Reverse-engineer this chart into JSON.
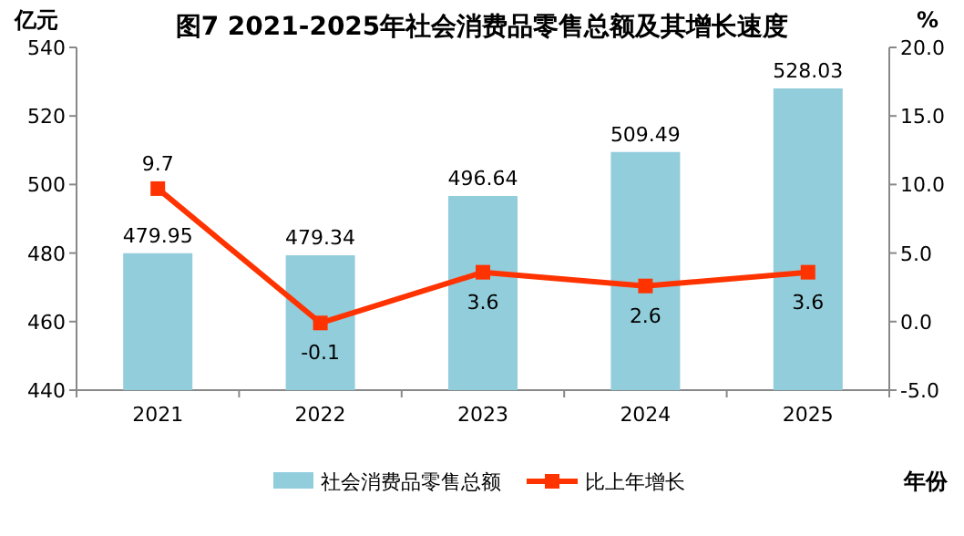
{
  "chart_data": {
    "type": "bar",
    "title": "图7  2021-2025年社会消费品零售总额及其增长速度",
    "xlabel": "年份",
    "ylabel": "亿元",
    "y2label": "%",
    "categories": [
      "2021",
      "2022",
      "2023",
      "2024",
      "2025"
    ],
    "series": [
      {
        "name": "社会消费品零售总额",
        "color": "#92cddc",
        "values": [
          479.95,
          479.34,
          496.64,
          509.49,
          528.03
        ]
      },
      {
        "name": "比上年增长",
        "type": "line",
        "axis": "y2",
        "color": "#ff3300",
        "values": [
          9.7,
          -0.1,
          3.6,
          2.6,
          3.6
        ]
      }
    ],
    "ylim": [
      440,
      540
    ],
    "yticks": [
      440,
      460,
      480,
      500,
      520,
      540
    ],
    "y2lim": [
      -5,
      20
    ],
    "y2ticks": [
      {
        "value": -5,
        "label": "-5.0"
      },
      {
        "value": 0,
        "label": "0.0"
      },
      {
        "value": 5,
        "label": "5.0"
      },
      {
        "value": 10,
        "label": "10.0"
      },
      {
        "value": 15,
        "label": "15.0"
      },
      {
        "value": 20,
        "label": "20.0"
      }
    ],
    "marker": "square",
    "data_labels": true,
    "legend": "bottom"
  }
}
